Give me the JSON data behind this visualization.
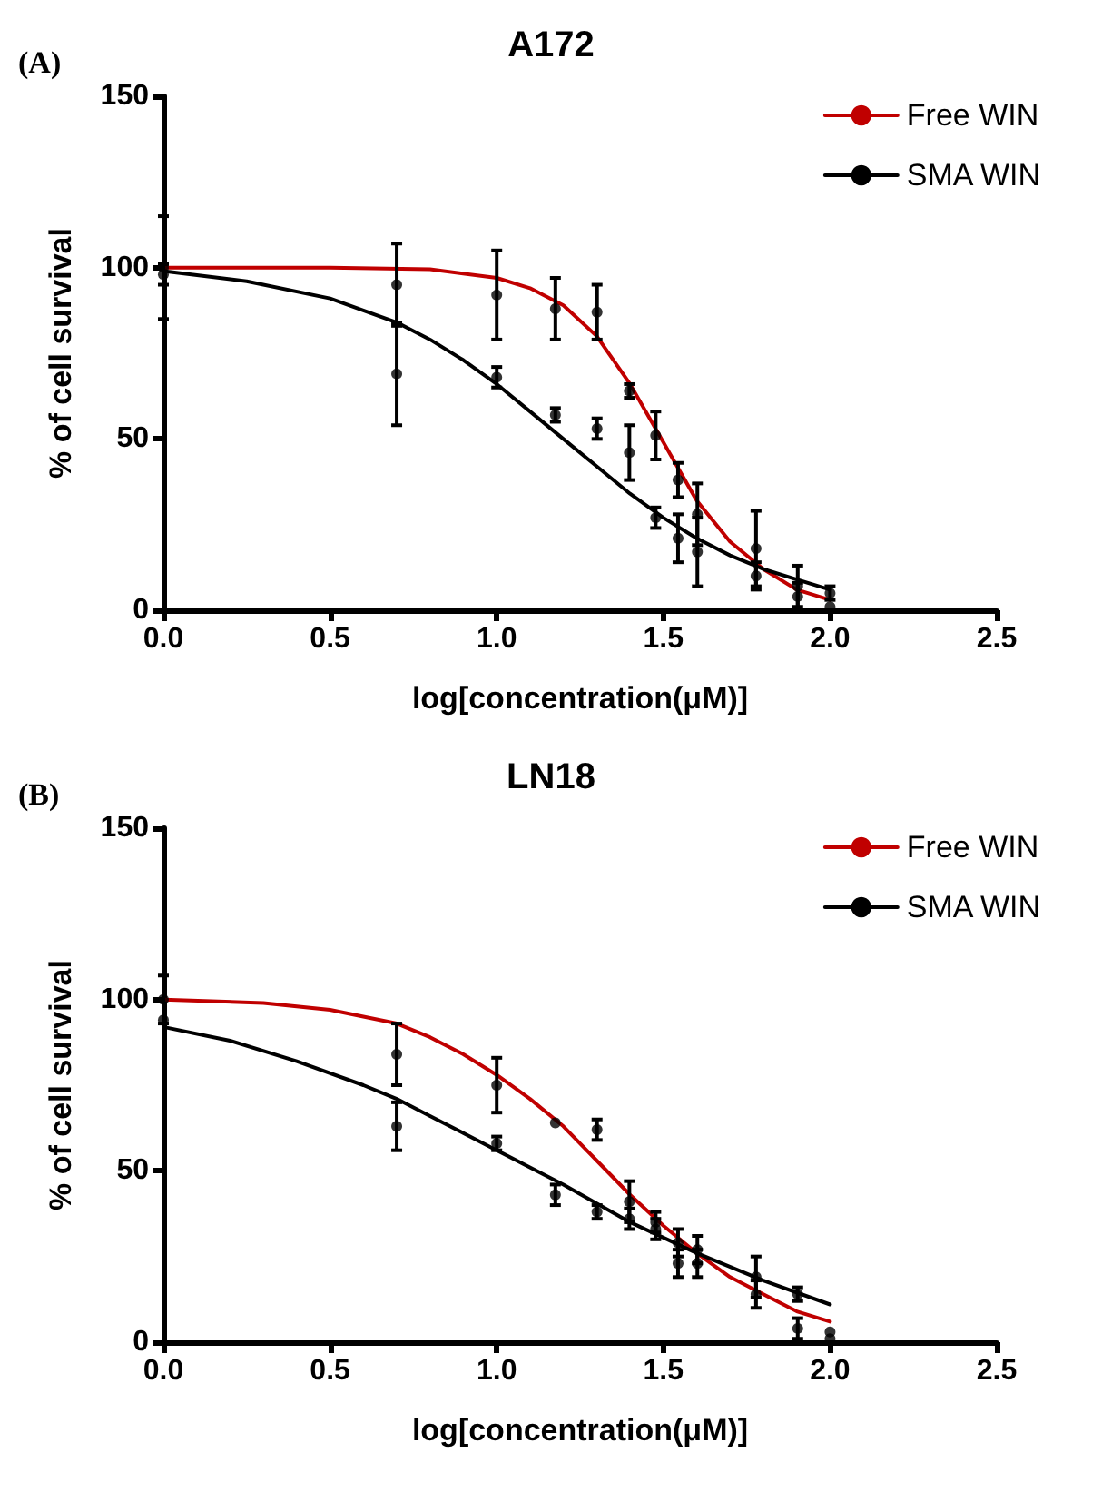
{
  "chart_data": [
    {
      "type": "line",
      "title": "A172",
      "xlabel": "log[concentration(μM)]",
      "ylabel": "% of cell survival",
      "annotations": [
        "(A)"
      ],
      "xlim": [
        0,
        2.5
      ],
      "xticks": [
        {
          "value": 0,
          "label": "0.0"
        },
        {
          "value": 0.5,
          "label": "0.5"
        },
        {
          "value": 1,
          "label": "1.0"
        },
        {
          "value": 1.5,
          "label": "1.5"
        },
        {
          "value": 2,
          "label": "2.0"
        },
        {
          "value": 2.5,
          "label": "2.5"
        }
      ],
      "ylim": [
        0,
        150
      ],
      "yticks": [
        0,
        50,
        100,
        150
      ],
      "grid": false,
      "legend": "top right",
      "series": [
        {
          "name": "Free WIN",
          "type": "line",
          "marker": "none",
          "color": "#c00000",
          "x": [
            0,
            0.5,
            0.8,
            1.0,
            1.1,
            1.2,
            1.3,
            1.4,
            1.5,
            1.6,
            1.7,
            1.8,
            1.9,
            2.0
          ],
          "values": [
            100,
            100,
            99.5,
            97,
            94,
            89,
            80,
            66,
            49,
            32,
            20,
            12,
            6,
            3
          ]
        },
        {
          "name": "SMA WIN",
          "type": "line",
          "marker": "none",
          "color": "#000000",
          "x": [
            0,
            0.25,
            0.5,
            0.7,
            0.8,
            0.9,
            1.0,
            1.1,
            1.2,
            1.3,
            1.4,
            1.5,
            1.6,
            1.7,
            1.8,
            1.9,
            2.0
          ],
          "values": [
            99,
            96,
            91,
            84,
            79,
            73,
            66,
            58,
            50,
            42,
            34,
            27,
            21,
            16,
            12,
            9,
            6
          ]
        },
        {
          "type": "scatter",
          "marker": "circle",
          "color": "#000000",
          "x": [
            0,
            0.7,
            1.0,
            1.176,
            1.301,
            1.398,
            1.477,
            1.544,
            1.602,
            1.778,
            1.903,
            2.0
          ],
          "values": [
            100,
            95,
            92,
            88,
            87,
            64,
            51,
            38,
            28,
            18,
            7,
            5
          ],
          "errors": [
            15,
            12,
            13,
            9,
            8,
            2,
            7,
            5,
            9,
            11,
            6,
            2
          ]
        },
        {
          "type": "scatter",
          "marker": "circle",
          "color": "#000000",
          "x": [
            0,
            0.7,
            1.0,
            1.176,
            1.301,
            1.398,
            1.477,
            1.544,
            1.602,
            1.778,
            1.903,
            2.0
          ],
          "values": [
            98,
            69,
            68,
            57,
            53,
            46,
            27,
            21,
            17,
            10,
            4,
            1
          ],
          "errors": [
            3,
            15,
            3,
            2,
            3,
            8,
            3,
            7,
            10,
            4,
            4,
            null
          ]
        }
      ]
    },
    {
      "type": "line",
      "title": "LN18",
      "xlabel": "log[concentration(μM)]",
      "ylabel": "% of cell survival",
      "annotations": [
        "(B)"
      ],
      "xlim": [
        0,
        2.5
      ],
      "xticks": [
        {
          "value": 0,
          "label": "0.0"
        },
        {
          "value": 0.5,
          "label": "0.5"
        },
        {
          "value": 1,
          "label": "1.0"
        },
        {
          "value": 1.5,
          "label": "1.5"
        },
        {
          "value": 2,
          "label": "2.0"
        },
        {
          "value": 2.5,
          "label": "2.5"
        }
      ],
      "ylim": [
        0,
        150
      ],
      "yticks": [
        0,
        50,
        100,
        150
      ],
      "grid": false,
      "legend": "top right",
      "series": [
        {
          "name": "Free WIN",
          "type": "line",
          "marker": "none",
          "color": "#c00000",
          "x": [
            0,
            0.3,
            0.5,
            0.7,
            0.8,
            0.9,
            1.0,
            1.1,
            1.2,
            1.3,
            1.4,
            1.5,
            1.6,
            1.7,
            1.8,
            1.9,
            2.0
          ],
          "values": [
            100,
            99,
            97,
            93,
            89,
            84,
            78,
            71,
            63,
            53,
            43,
            34,
            26,
            19,
            14,
            9,
            6
          ]
        },
        {
          "name": "SMA WIN",
          "type": "line",
          "marker": "none",
          "color": "#000000",
          "x": [
            0,
            0.2,
            0.4,
            0.6,
            0.7,
            0.8,
            1.0,
            1.2,
            1.4,
            1.6,
            1.8,
            2.0
          ],
          "values": [
            92,
            88,
            82,
            75,
            71,
            66,
            56,
            46,
            35,
            26,
            18,
            11
          ]
        },
        {
          "type": "scatter",
          "marker": "circle",
          "color": "#000000",
          "x": [
            0,
            0.7,
            1.0,
            1.176,
            1.301,
            1.398,
            1.477,
            1.544,
            1.602,
            1.778,
            1.903,
            2.0
          ],
          "values": [
            100,
            84,
            75,
            64,
            62,
            41,
            35,
            29,
            27,
            19,
            4,
            3
          ],
          "errors": [
            7,
            9,
            8,
            null,
            3,
            6,
            3,
            4,
            4,
            6,
            3,
            null
          ]
        },
        {
          "type": "scatter",
          "marker": "circle",
          "color": "#000000",
          "x": [
            0,
            0.7,
            1.0,
            1.176,
            1.301,
            1.398,
            1.477,
            1.544,
            1.602,
            1.778,
            1.903,
            2.0
          ],
          "values": [
            94,
            63,
            58,
            43,
            38,
            36,
            33,
            23,
            23,
            14,
            14,
            1
          ],
          "errors": [
            null,
            7,
            2,
            3,
            2,
            3,
            3,
            4,
            4,
            4,
            2,
            null
          ]
        }
      ]
    }
  ]
}
